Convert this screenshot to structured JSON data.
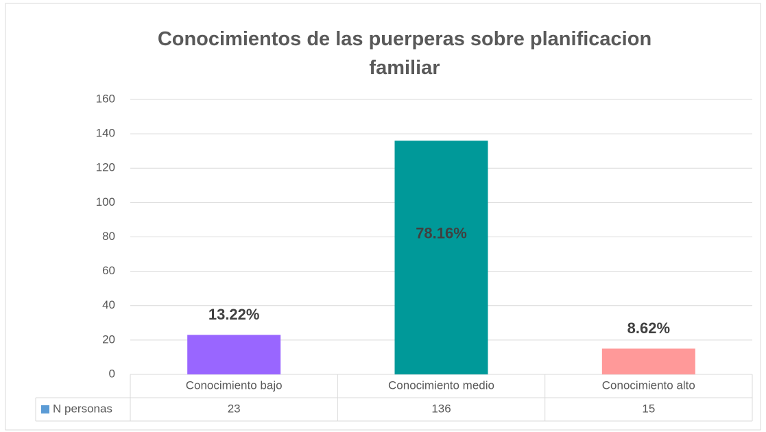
{
  "chart_data": {
    "type": "bar",
    "title": "Conocimientos de las puerperas sobre planificacion familiar",
    "categories": [
      "Conocimiento bajo",
      "Conocimiento medio",
      "Conocimiento alto"
    ],
    "series": [
      {
        "name": "N personas",
        "color": "#5b9bd5",
        "values": [
          23,
          136,
          15
        ]
      }
    ],
    "bar_colors": [
      "#9966ff",
      "#009999",
      "#ff9999"
    ],
    "data_labels": [
      "13.22%",
      "78.16%",
      "8.62%"
    ],
    "ylim": [
      0,
      160
    ],
    "yticks": [
      0,
      20,
      40,
      60,
      80,
      100,
      120,
      140,
      160
    ],
    "grid": true,
    "data_table": true
  }
}
